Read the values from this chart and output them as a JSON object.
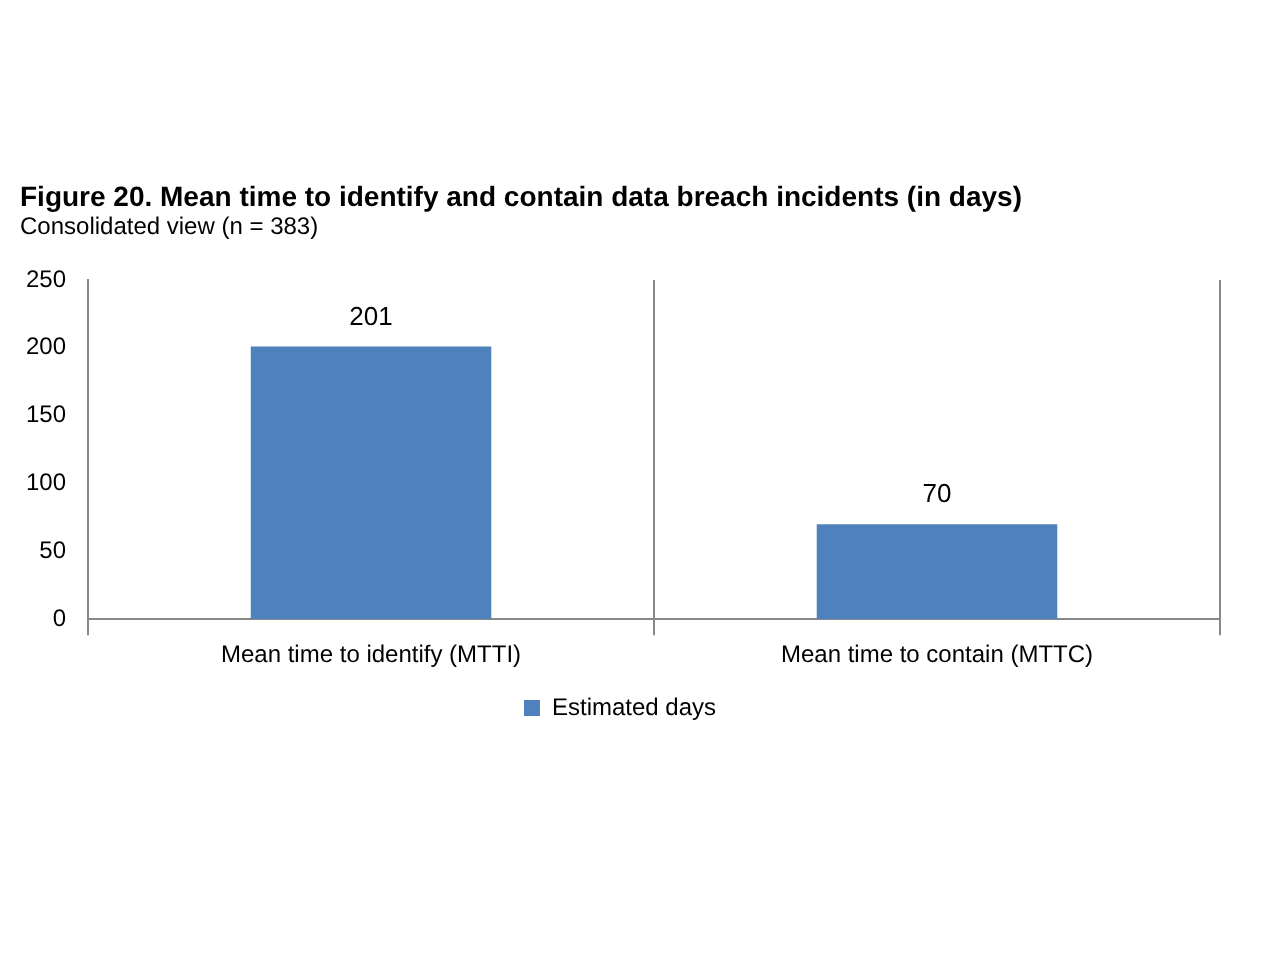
{
  "chart_data": {
    "type": "bar",
    "title": "Figure 20. Mean time to identify and contain data breach incidents (in days)",
    "subtitle": "Consolidated view (n = 383)",
    "categories": [
      "Mean time to identify (MTTI)",
      "Mean time to contain (MTTC)"
    ],
    "series": [
      {
        "name": "Estimated days",
        "color": "#4f81bd",
        "values": [
          201,
          70
        ]
      }
    ],
    "ylim": [
      0,
      250
    ],
    "yticks": [
      0,
      50,
      100,
      150,
      200,
      250
    ],
    "grid": "x",
    "legend": "bottom",
    "data_labels": true
  }
}
